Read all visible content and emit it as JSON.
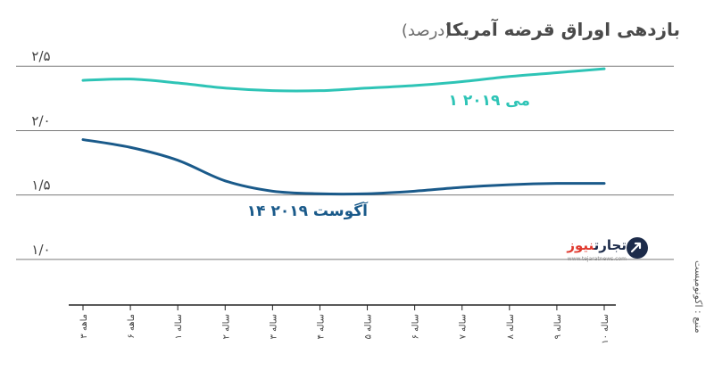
{
  "chart_data": {
    "type": "line",
    "title": "بازدهی اوراق قرضه آمریکا",
    "title_unit": "(درصد)",
    "categories": [
      "۳ ماهه",
      "۶ ماهه",
      "۱ ساله",
      "۲ ساله",
      "۳ ساله",
      "۴ ساله",
      "۵ ساله",
      "۶ ساله",
      "۷ ساله",
      "۸ ساله",
      "۹ ساله",
      "۱۰ ساله"
    ],
    "y_ticks": [
      {
        "value": 1.0,
        "label": "۱/۰"
      },
      {
        "value": 1.5,
        "label": "۱/۵"
      },
      {
        "value": 2.0,
        "label": "۲/۰"
      },
      {
        "value": 2.5,
        "label": "۲/۵"
      }
    ],
    "ylim": [
      0.66,
      2.82
    ],
    "grid": true,
    "series": [
      {
        "name": "۱ می ۲۰۱۹",
        "color": "#2ec4b6",
        "values": [
          2.39,
          2.4,
          2.37,
          2.33,
          2.31,
          2.31,
          2.33,
          2.35,
          2.38,
          2.42,
          2.45,
          2.48
        ]
      },
      {
        "name": "۱۴ آگوست ۲۰۱۹",
        "color": "#1a5a8a",
        "values": [
          1.93,
          1.87,
          1.77,
          1.61,
          1.53,
          1.51,
          1.51,
          1.53,
          1.56,
          1.58,
          1.59,
          1.59
        ]
      }
    ]
  },
  "source": "منبع : اکونومیست",
  "logo": {
    "text_part1": "تجارت",
    "text_part2": "نیوز",
    "subtext": "www.tejaratnews.com"
  },
  "colors": {
    "grid": "#7a7a7a",
    "axis": "#222222",
    "logo_red": "#e03a2f",
    "logo_dark": "#1c2b4a"
  }
}
